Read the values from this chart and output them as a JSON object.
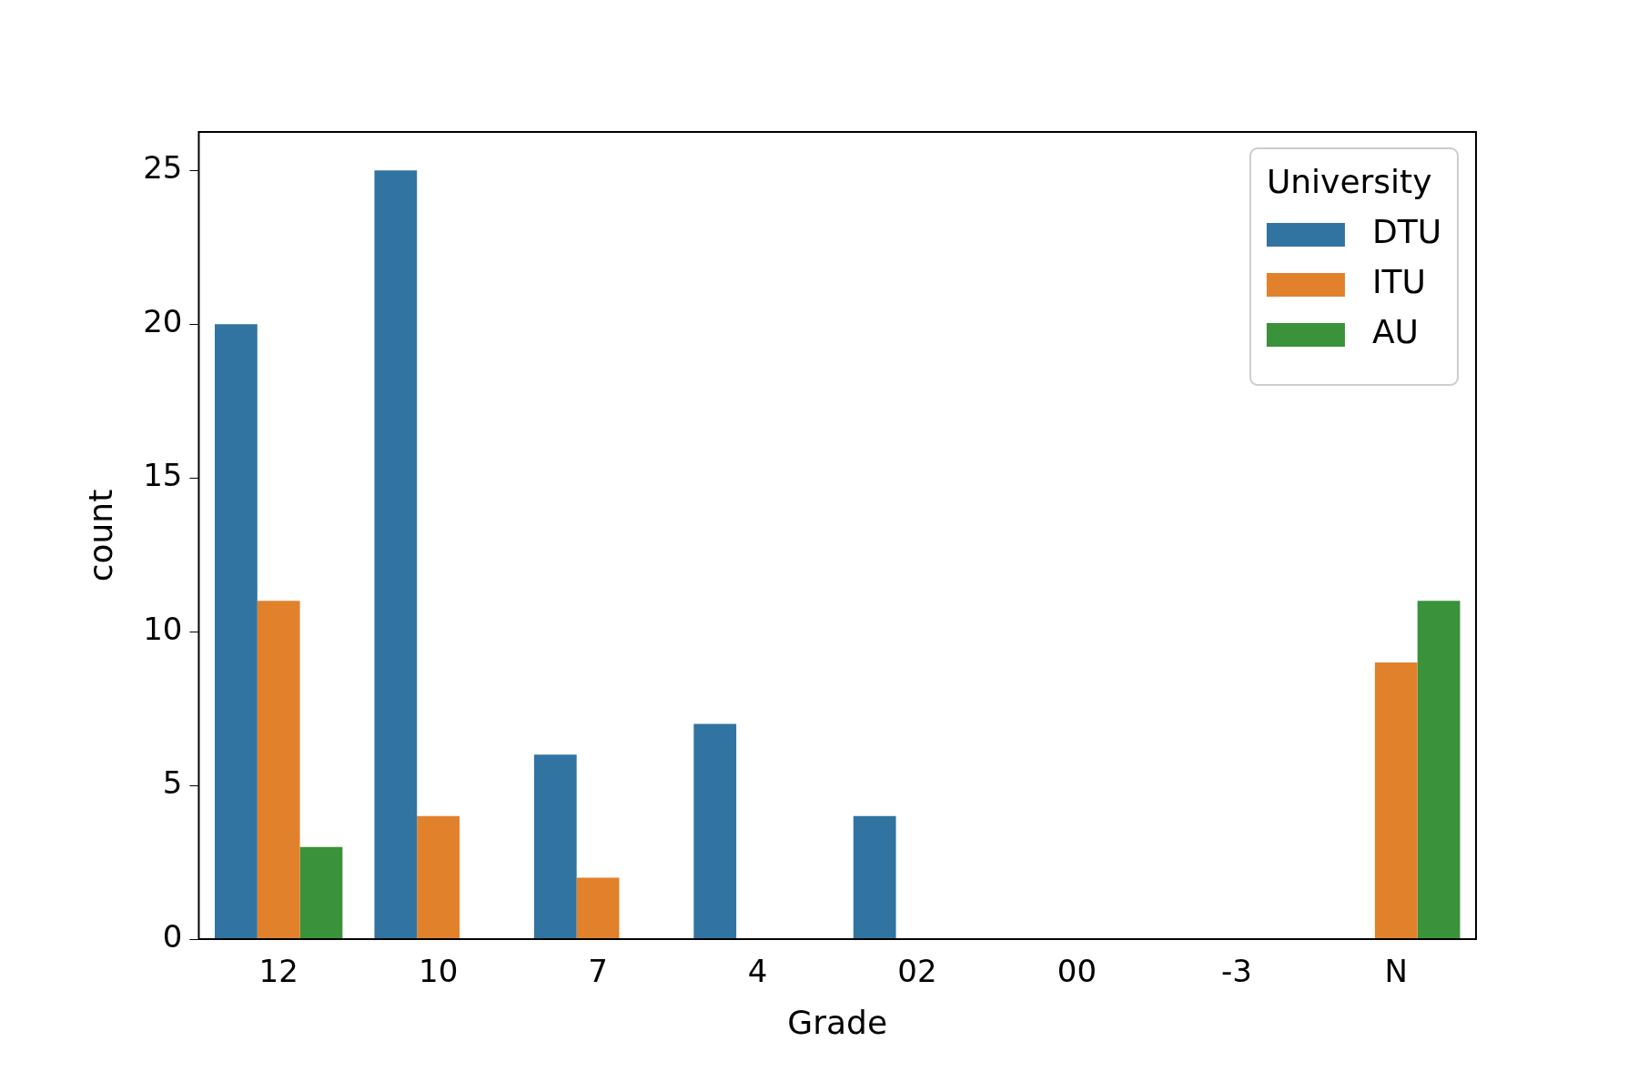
{
  "chart_data": {
    "type": "bar",
    "xlabel": "Grade",
    "ylabel": "count",
    "legend_title": "University",
    "categories": [
      "12",
      "10",
      "7",
      "4",
      "02",
      "00",
      "-3",
      "N"
    ],
    "series": [
      {
        "name": "DTU",
        "color": "#3274a1",
        "values": [
          20,
          25,
          6,
          7,
          4,
          null,
          null,
          null
        ]
      },
      {
        "name": "ITU",
        "color": "#e1812c",
        "values": [
          11,
          4,
          2,
          null,
          null,
          null,
          null,
          9
        ]
      },
      {
        "name": "AU",
        "color": "#3a923a",
        "values": [
          3,
          null,
          null,
          null,
          null,
          null,
          null,
          11
        ]
      }
    ],
    "ylim": [
      0,
      26.25
    ],
    "yticks": [
      0,
      5,
      10,
      15,
      20,
      25
    ],
    "grid": false,
    "legend": "top right"
  }
}
